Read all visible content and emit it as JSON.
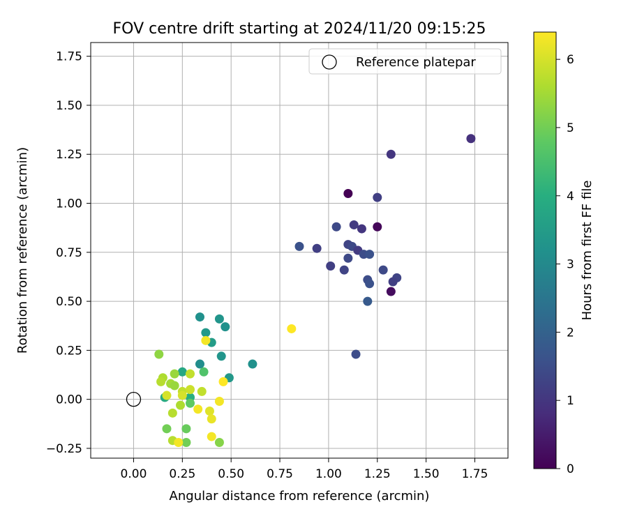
{
  "chart_data": {
    "type": "scatter",
    "title": "FOV centre drift starting at 2024/11/20 09:15:25",
    "xlabel": "Angular distance from reference (arcmin)",
    "ylabel": "Rotation from reference (arcmin)",
    "xlim": [
      -0.22,
      1.92
    ],
    "ylim": [
      -0.3,
      1.82
    ],
    "xticks": [
      0.0,
      0.25,
      0.5,
      0.75,
      1.0,
      1.25,
      1.5,
      1.75
    ],
    "xtick_labels": [
      "0.00",
      "0.25",
      "0.50",
      "0.75",
      "1.00",
      "1.25",
      "1.50",
      "1.75"
    ],
    "yticks": [
      -0.25,
      0.0,
      0.25,
      0.5,
      0.75,
      1.0,
      1.25,
      1.5,
      1.75
    ],
    "ytick_labels": [
      "−0.25",
      "0.00",
      "0.25",
      "0.50",
      "0.75",
      "1.00",
      "1.25",
      "1.50",
      "1.75"
    ],
    "grid": true,
    "legend": {
      "position": "top-right",
      "label": "Reference platepar",
      "marker": "open circle"
    },
    "reference_point": {
      "x": 0.0,
      "y": 0.0
    },
    "colorbar": {
      "label": "Hours from first FF file",
      "colormap": "viridis",
      "range": [
        0,
        6.4
      ],
      "ticks": [
        0,
        1,
        2,
        3,
        4,
        5,
        6
      ],
      "tick_labels": [
        "0",
        "1",
        "2",
        "3",
        "4",
        "5",
        "6"
      ]
    },
    "points": [
      {
        "x": 1.1,
        "y": 1.05,
        "c": 0.0
      },
      {
        "x": 1.25,
        "y": 0.88,
        "c": 0.1
      },
      {
        "x": 1.32,
        "y": 0.55,
        "c": 0.2
      },
      {
        "x": 1.73,
        "y": 1.33,
        "c": 0.9
      },
      {
        "x": 1.32,
        "y": 1.25,
        "c": 1.0
      },
      {
        "x": 1.25,
        "y": 1.03,
        "c": 1.2
      },
      {
        "x": 1.13,
        "y": 0.89,
        "c": 1.1
      },
      {
        "x": 1.17,
        "y": 0.87,
        "c": 1.0
      },
      {
        "x": 1.04,
        "y": 0.88,
        "c": 1.4
      },
      {
        "x": 0.85,
        "y": 0.78,
        "c": 1.6
      },
      {
        "x": 0.94,
        "y": 0.77,
        "c": 1.2
      },
      {
        "x": 1.1,
        "y": 0.79,
        "c": 1.3
      },
      {
        "x": 1.12,
        "y": 0.78,
        "c": 1.4
      },
      {
        "x": 1.15,
        "y": 0.76,
        "c": 1.1
      },
      {
        "x": 1.18,
        "y": 0.74,
        "c": 1.5
      },
      {
        "x": 1.21,
        "y": 0.74,
        "c": 1.6
      },
      {
        "x": 1.1,
        "y": 0.72,
        "c": 1.4
      },
      {
        "x": 1.01,
        "y": 0.68,
        "c": 1.2
      },
      {
        "x": 1.08,
        "y": 0.66,
        "c": 1.3
      },
      {
        "x": 1.28,
        "y": 0.66,
        "c": 1.4
      },
      {
        "x": 1.2,
        "y": 0.61,
        "c": 1.5
      },
      {
        "x": 1.35,
        "y": 0.62,
        "c": 1.3
      },
      {
        "x": 1.33,
        "y": 0.6,
        "c": 1.2
      },
      {
        "x": 1.21,
        "y": 0.59,
        "c": 1.6
      },
      {
        "x": 1.2,
        "y": 0.5,
        "c": 1.8
      },
      {
        "x": 1.14,
        "y": 0.23,
        "c": 1.5
      },
      {
        "x": 0.34,
        "y": 0.42,
        "c": 3.2
      },
      {
        "x": 0.44,
        "y": 0.41,
        "c": 3.3
      },
      {
        "x": 0.47,
        "y": 0.37,
        "c": 3.2
      },
      {
        "x": 0.37,
        "y": 0.34,
        "c": 3.4
      },
      {
        "x": 0.4,
        "y": 0.29,
        "c": 3.5
      },
      {
        "x": 0.45,
        "y": 0.22,
        "c": 3.3
      },
      {
        "x": 0.34,
        "y": 0.18,
        "c": 3.1
      },
      {
        "x": 0.61,
        "y": 0.18,
        "c": 3.2
      },
      {
        "x": 0.49,
        "y": 0.11,
        "c": 3.4
      },
      {
        "x": 0.25,
        "y": 0.14,
        "c": 3.8
      },
      {
        "x": 0.36,
        "y": 0.14,
        "c": 4.6
      },
      {
        "x": 0.16,
        "y": 0.01,
        "c": 3.9
      },
      {
        "x": 0.29,
        "y": 0.01,
        "c": 4.0
      },
      {
        "x": 0.29,
        "y": -0.02,
        "c": 4.8
      },
      {
        "x": 0.27,
        "y": -0.15,
        "c": 4.9
      },
      {
        "x": 0.17,
        "y": -0.15,
        "c": 5.0
      },
      {
        "x": 0.27,
        "y": -0.22,
        "c": 5.0
      },
      {
        "x": 0.44,
        "y": -0.22,
        "c": 5.2
      },
      {
        "x": 0.13,
        "y": 0.23,
        "c": 5.3
      },
      {
        "x": 0.21,
        "y": 0.13,
        "c": 5.4
      },
      {
        "x": 0.15,
        "y": 0.11,
        "c": 5.6
      },
      {
        "x": 0.19,
        "y": 0.08,
        "c": 5.5
      },
      {
        "x": 0.21,
        "y": 0.07,
        "c": 5.4
      },
      {
        "x": 0.14,
        "y": 0.09,
        "c": 5.7
      },
      {
        "x": 0.29,
        "y": 0.13,
        "c": 5.8
      },
      {
        "x": 0.25,
        "y": 0.04,
        "c": 5.8
      },
      {
        "x": 0.29,
        "y": 0.05,
        "c": 5.9
      },
      {
        "x": 0.35,
        "y": 0.04,
        "c": 5.8
      },
      {
        "x": 0.24,
        "y": -0.03,
        "c": 5.6
      },
      {
        "x": 0.2,
        "y": -0.07,
        "c": 5.7
      },
      {
        "x": 0.25,
        "y": 0.02,
        "c": 6.0
      },
      {
        "x": 0.17,
        "y": 0.02,
        "c": 6.0
      },
      {
        "x": 0.33,
        "y": -0.05,
        "c": 6.3
      },
      {
        "x": 0.39,
        "y": -0.06,
        "c": 6.1
      },
      {
        "x": 0.4,
        "y": -0.1,
        "c": 6.2
      },
      {
        "x": 0.44,
        "y": -0.01,
        "c": 6.3
      },
      {
        "x": 0.4,
        "y": -0.19,
        "c": 6.3
      },
      {
        "x": 0.2,
        "y": -0.21,
        "c": 5.7
      },
      {
        "x": 0.23,
        "y": -0.22,
        "c": 6.3
      },
      {
        "x": 0.46,
        "y": 0.09,
        "c": 6.4
      },
      {
        "x": 0.37,
        "y": 0.3,
        "c": 6.3
      },
      {
        "x": 0.81,
        "y": 0.36,
        "c": 6.4
      }
    ]
  }
}
